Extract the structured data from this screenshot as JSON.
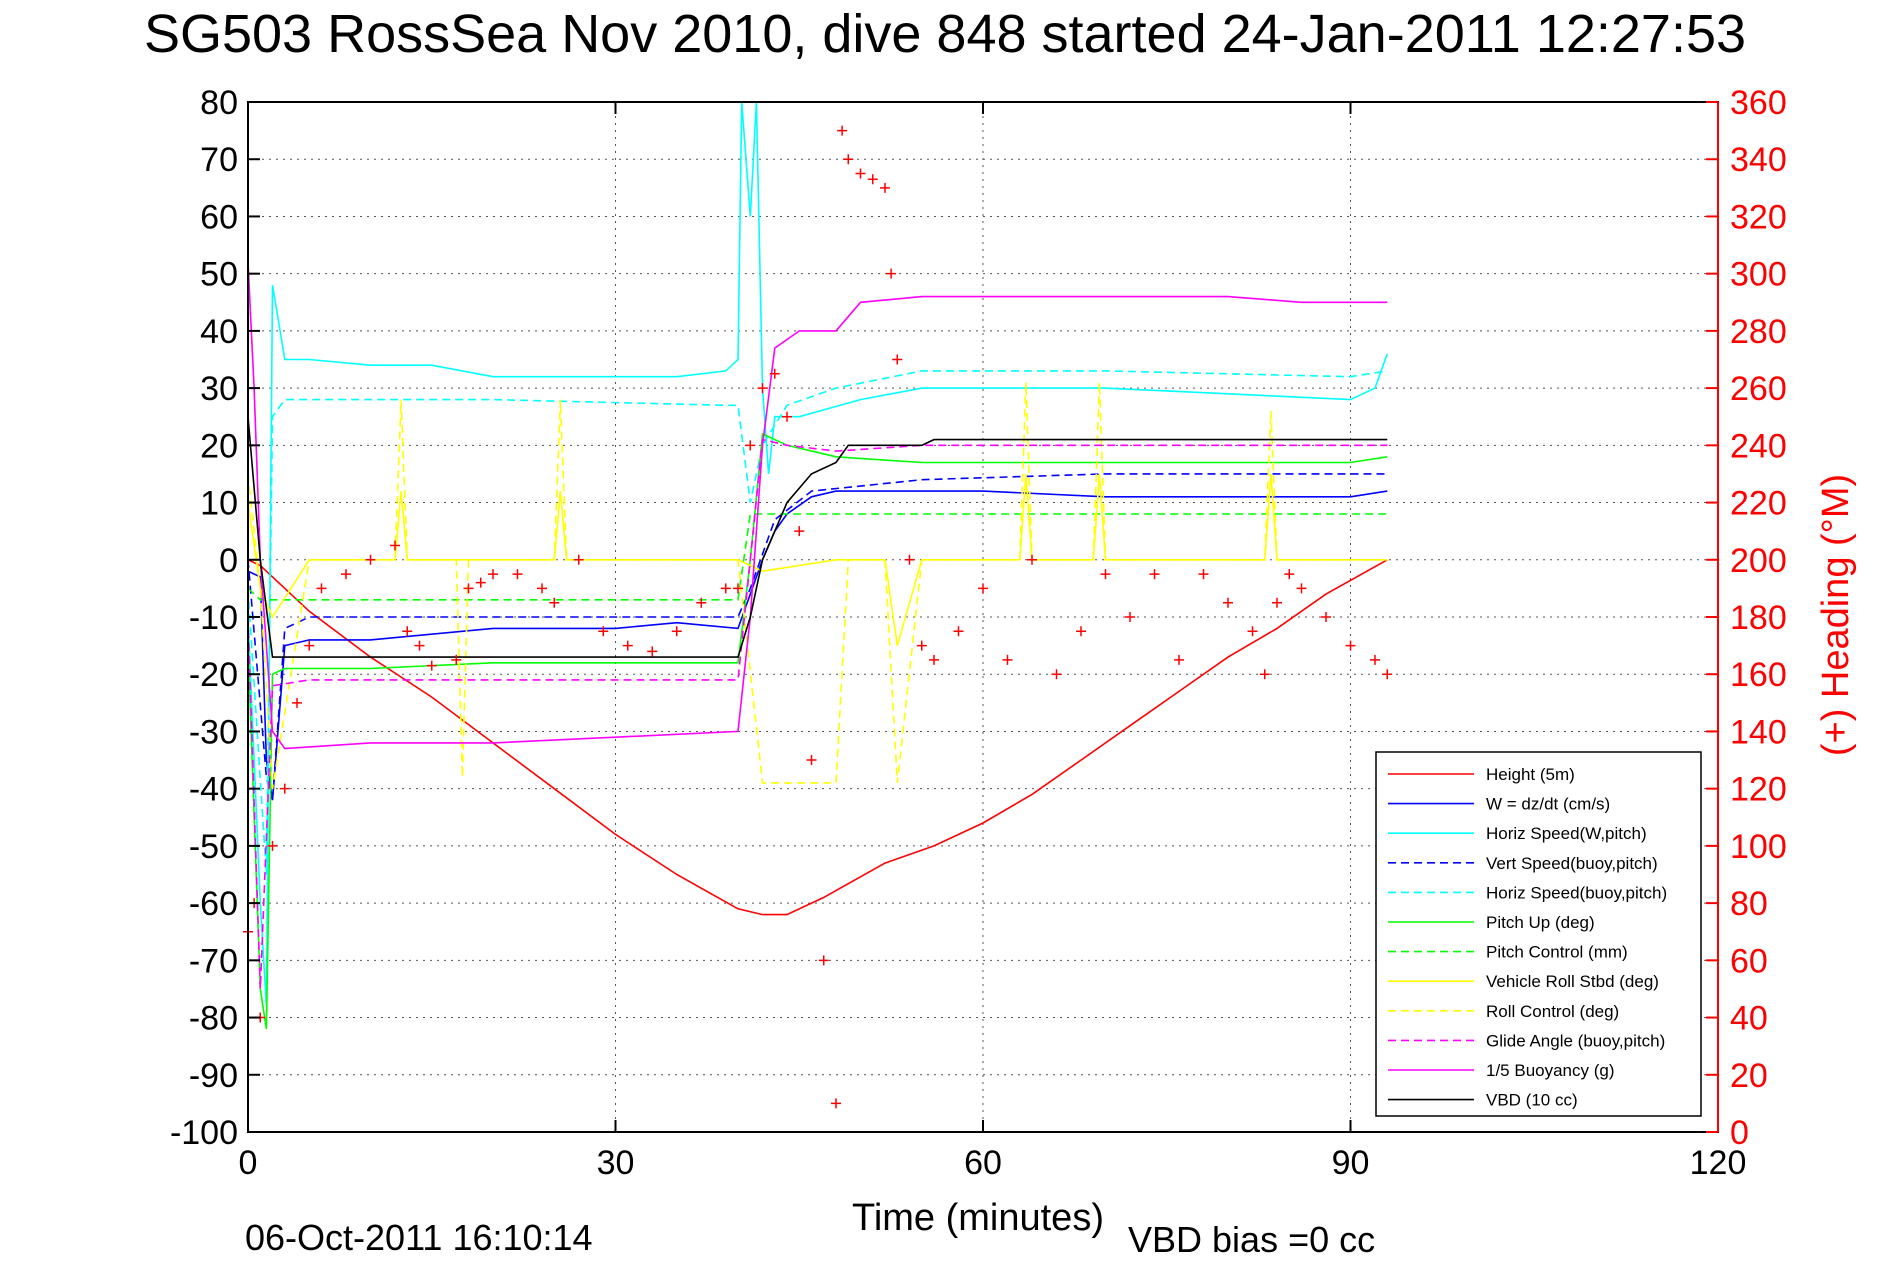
{
  "chart_data": {
    "type": "line",
    "title": "SG503 RossSea Nov 2010, dive 848 started 24-Jan-2011 12:27:53",
    "xlabel": "Time (minutes)",
    "ylabel_right": "(+) Heading (°M)",
    "footer_date": "06-Oct-2011 16:10:14",
    "footer_vbd": "VBD bias =0 cc",
    "xlim": [
      0,
      120
    ],
    "ylim": [
      -100,
      80
    ],
    "ylim_right": [
      0,
      360
    ],
    "x_ticks": [
      0,
      30,
      60,
      90,
      120
    ],
    "y_ticks": [
      80,
      70,
      60,
      50,
      40,
      30,
      20,
      10,
      0,
      -10,
      -20,
      -30,
      -40,
      -50,
      -60,
      -70,
      -80,
      -90,
      -100
    ],
    "y_ticks_right": [
      360,
      340,
      320,
      300,
      280,
      260,
      240,
      220,
      200,
      180,
      160,
      140,
      120,
      100,
      80,
      60,
      40,
      20,
      0
    ],
    "grid": true,
    "legend_position": "bottom-right",
    "colors": {
      "red": "#ff0000",
      "blue": "#0000ff",
      "cyan": "#00ffff",
      "green": "#00ff00",
      "yellow": "#ffff00",
      "magenta": "#ff00ff",
      "black": "#000000"
    },
    "series": [
      {
        "name": "Height (5m)",
        "color": "#ff0000",
        "dash": "solid",
        "x": [
          0,
          1,
          2,
          5,
          10,
          15,
          20,
          25,
          30,
          35,
          40,
          42,
          44,
          47,
          52,
          56,
          60,
          64,
          68,
          72,
          76,
          80,
          84,
          88,
          93
        ],
        "y": [
          0,
          -1,
          -3,
          -9,
          -17,
          -24,
          -32,
          -40,
          -48,
          -55,
          -61,
          -62,
          -62,
          -59,
          -53,
          -50,
          -46,
          -41,
          -35,
          -29,
          -23,
          -17,
          -12,
          -6,
          0
        ]
      },
      {
        "name": "W = dz/dt (cm/s)",
        "color": "#0000ff",
        "dash": "solid",
        "x": [
          0,
          1,
          1.5,
          2,
          3,
          5,
          10,
          20,
          30,
          35,
          40,
          41,
          42,
          43,
          44,
          46,
          48,
          55,
          60,
          70,
          80,
          90,
          93
        ],
        "y": [
          -2,
          -3,
          -35,
          -42,
          -15,
          -14,
          -14,
          -12,
          -12,
          -11,
          -12,
          -6,
          0,
          5,
          8,
          11,
          12,
          12,
          12,
          11,
          11,
          11,
          12
        ]
      },
      {
        "name": "Horiz Speed(W,pitch)",
        "color": "#00ffff",
        "dash": "solid",
        "x": [
          0,
          1,
          1.5,
          2,
          3,
          5,
          10,
          15,
          20,
          25,
          30,
          35,
          39,
          40,
          40.3,
          41,
          41.5,
          42,
          42.5,
          43,
          45,
          50,
          55,
          60,
          70,
          80,
          90,
          92,
          93
        ],
        "y": [
          -10,
          -60,
          -78,
          48,
          35,
          35,
          34,
          34,
          32,
          32,
          32,
          32,
          33,
          35,
          80,
          60,
          80,
          30,
          15,
          25,
          25,
          28,
          30,
          30,
          30,
          29,
          28,
          30,
          36
        ]
      },
      {
        "name": "Vert Speed(buoy,pitch)",
        "color": "#0000ff",
        "dash": "dashed",
        "x": [
          0,
          1.5,
          2,
          3,
          5,
          20,
          40,
          41,
          43,
          46,
          55,
          70,
          93
        ],
        "y": [
          0,
          -38,
          -42,
          -12,
          -10,
          -10,
          -10,
          -5,
          7,
          12,
          14,
          15,
          15
        ]
      },
      {
        "name": "Horiz Speed(buoy,pitch)",
        "color": "#00ffff",
        "dash": "dashed",
        "x": [
          0,
          1.5,
          2,
          3,
          5,
          20,
          39,
          40,
          41,
          42,
          44,
          48,
          55,
          70,
          90,
          93
        ],
        "y": [
          -5,
          -55,
          25,
          28,
          28,
          28,
          27,
          27,
          10,
          20,
          27,
          30,
          33,
          33,
          32,
          33
        ]
      },
      {
        "name": "Pitch Up (deg)",
        "color": "#00ff00",
        "dash": "solid",
        "x": [
          0,
          1,
          1.5,
          2,
          3,
          5,
          10,
          20,
          30,
          40,
          41,
          42,
          44,
          48,
          55,
          60,
          70,
          80,
          90,
          93
        ],
        "y": [
          -15,
          -75,
          -82,
          -20,
          -19,
          -19,
          -19,
          -18,
          -18,
          -18,
          0,
          22,
          20,
          18,
          17,
          17,
          17,
          17,
          17,
          18
        ]
      },
      {
        "name": "Pitch Control (mm)",
        "color": "#00ff00",
        "dash": "dashed",
        "x": [
          0,
          1,
          2,
          20,
          40,
          41,
          93
        ],
        "y": [
          -5,
          -7,
          -7,
          -7,
          -7,
          8,
          8
        ]
      },
      {
        "name": "Vehicle Roll Stbd (deg)",
        "color": "#ffff00",
        "dash": "solid",
        "x": [
          0,
          1,
          2,
          5,
          12,
          12.5,
          13,
          18,
          25,
          25.5,
          26,
          40,
          42,
          48,
          49,
          52,
          53,
          55,
          63,
          63.5,
          64,
          69,
          69.5,
          70,
          83,
          83.5,
          84,
          93
        ],
        "y": [
          10,
          -5,
          -10,
          0,
          0,
          12,
          0,
          0,
          0,
          12,
          0,
          0,
          -2,
          0,
          0,
          0,
          -15,
          0,
          0,
          15,
          0,
          0,
          15,
          0,
          0,
          15,
          0,
          0
        ]
      },
      {
        "name": "Roll Control (deg)",
        "color": "#ffff00",
        "dash": "dashed",
        "x": [
          0,
          1,
          2,
          5,
          12,
          12.5,
          13,
          17,
          17.5,
          18,
          25,
          25.5,
          26,
          40,
          42,
          48,
          49,
          52,
          53,
          55,
          63,
          63.5,
          64,
          69,
          69.5,
          70,
          83,
          83.5,
          84,
          93
        ],
        "y": [
          15,
          -5,
          -40,
          0,
          0,
          28,
          0,
          0,
          -38,
          0,
          0,
          28,
          0,
          0,
          -39,
          -39,
          0,
          0,
          -39,
          0,
          0,
          31,
          0,
          0,
          31,
          0,
          0,
          26,
          0,
          0
        ]
      },
      {
        "name": "Glide Angle (buoy,pitch)",
        "color": "#ff00ff",
        "dash": "dashed",
        "x": [
          0,
          1,
          2,
          5,
          20,
          40,
          41,
          42,
          44,
          48,
          55,
          93
        ],
        "y": [
          -10,
          -75,
          -22,
          -21,
          -21,
          -21,
          0,
          21,
          20,
          19,
          20,
          20
        ]
      },
      {
        "name": "1/5 Buoyancy (g)",
        "color": "#ff00ff",
        "dash": "solid",
        "x": [
          0,
          0.5,
          1,
          2,
          3,
          10,
          20,
          30,
          40,
          41,
          42,
          43,
          45,
          48,
          50,
          55,
          60,
          70,
          80,
          86,
          93
        ],
        "y": [
          52,
          30,
          0,
          -30,
          -33,
          -32,
          -32,
          -31,
          -30,
          -10,
          20,
          37,
          40,
          40,
          45,
          46,
          46,
          46,
          46,
          45,
          45
        ]
      },
      {
        "name": "VBD (10 cc)",
        "color": "#000000",
        "dash": "solid",
        "x": [
          0,
          1,
          2,
          10,
          20,
          30,
          40,
          41,
          42,
          44,
          46,
          48,
          49,
          55,
          56,
          93
        ],
        "y": [
          25,
          0,
          -17,
          -17,
          -17,
          -17,
          -17,
          -10,
          0,
          10,
          15,
          17,
          20,
          20,
          21,
          21
        ]
      },
      {
        "name": "Heading",
        "color": "#ff0000",
        "type": "scatter",
        "marker": "+",
        "axis": "right",
        "x": [
          0,
          0.5,
          1,
          2,
          3,
          4,
          5,
          6,
          8,
          10,
          12,
          13,
          14,
          15,
          17,
          18,
          19,
          20,
          22,
          24,
          25,
          27,
          29,
          31,
          33,
          35,
          37,
          39,
          40,
          41,
          42,
          43,
          44,
          45,
          46,
          47,
          48,
          48.5,
          49,
          50,
          51,
          52,
          52.5,
          53,
          54,
          55,
          56,
          58,
          60,
          62,
          64,
          66,
          68,
          70,
          72,
          74,
          76,
          78,
          80,
          82,
          83,
          84,
          85,
          86,
          88,
          90,
          92,
          93
        ],
        "y": [
          70,
          80,
          40,
          100,
          120,
          150,
          170,
          190,
          195,
          200,
          205,
          175,
          170,
          163,
          165,
          190,
          192,
          195,
          195,
          190,
          185,
          200,
          175,
          170,
          168,
          175,
          185,
          190,
          190,
          240,
          260,
          265,
          250,
          210,
          130,
          60,
          10,
          350,
          340,
          335,
          333,
          330,
          300,
          270,
          200,
          170,
          165,
          175,
          190,
          165,
          200,
          160,
          175,
          195,
          180,
          195,
          165,
          195,
          185,
          175,
          160,
          185,
          195,
          190,
          180,
          170,
          165,
          160
        ]
      }
    ]
  }
}
